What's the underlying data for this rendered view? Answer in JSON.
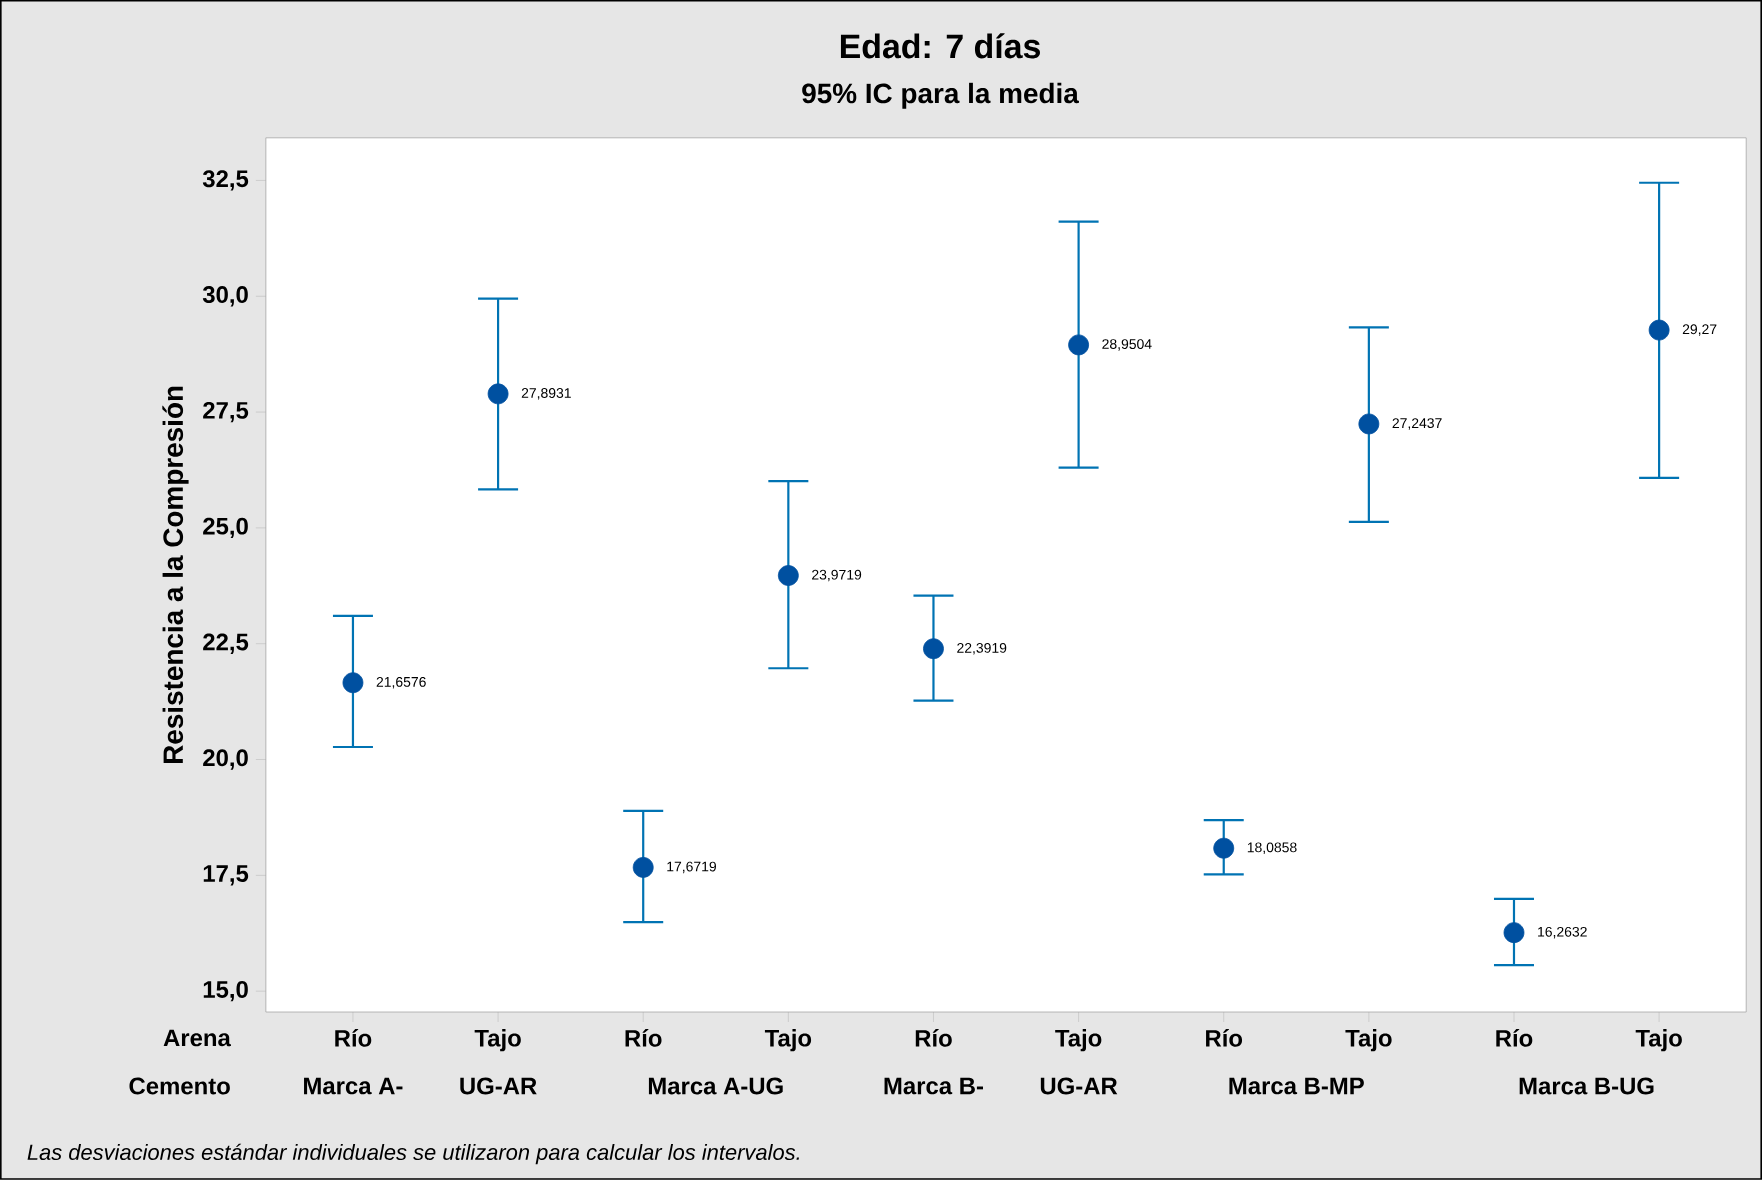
{
  "chart_data": {
    "type": "scatter",
    "title": "Edad: 7 días",
    "subtitle": "95% IC para la media",
    "ylabel": "Resistencia a la Compresión",
    "categories": [
      "Río",
      "Tajo",
      "Río",
      "Tajo",
      "Río",
      "Tajo",
      "Río",
      "Tajo",
      "Río",
      "Tajo"
    ],
    "values": [
      21.6576,
      27.8931,
      17.6719,
      23.9719,
      22.3919,
      28.9504,
      18.0858,
      27.2437,
      16.2632,
      29.27
    ],
    "errors": [
      [
        20.27,
        23.1
      ],
      [
        25.83,
        29.95
      ],
      [
        16.49,
        18.89
      ],
      [
        21.97,
        26.01
      ],
      [
        21.27,
        23.54
      ],
      [
        26.3,
        31.61
      ],
      [
        17.52,
        18.69
      ],
      [
        25.13,
        29.33
      ],
      [
        15.56,
        16.99
      ],
      [
        26.08,
        32.45
      ]
    ],
    "value_labels": [
      "21,6576",
      "27,8931",
      "17,6719",
      "23,9719",
      "22,3919",
      "28,9504",
      "18,0858",
      "27,2437",
      "16,2632",
      "29,27"
    ],
    "color": "#0050a0",
    "marker": "circle",
    "ylim": [
      14.55,
      33.42
    ],
    "yticks": [
      {
        "value": 15,
        "label": "15,0"
      },
      {
        "value": 17.5,
        "label": "17,5"
      },
      {
        "value": 20,
        "label": "20,0"
      },
      {
        "value": 22.5,
        "label": "22,5"
      },
      {
        "value": 25,
        "label": "25,0"
      },
      {
        "value": 27.5,
        "label": "27,5"
      },
      {
        "value": 30,
        "label": "30,0"
      },
      {
        "value": 32.5,
        "label": "32,5"
      }
    ],
    "annotations": [
      "Arena",
      "Cemento",
      "Marca A-",
      "UG-AR",
      "Marca A-UG",
      "Marca B-",
      "UG-AR",
      "Marca B-MP",
      "Marca B-UG",
      "Las desviaciones estándar individuales se utilizaron para calcular los intervalos."
    ]
  }
}
